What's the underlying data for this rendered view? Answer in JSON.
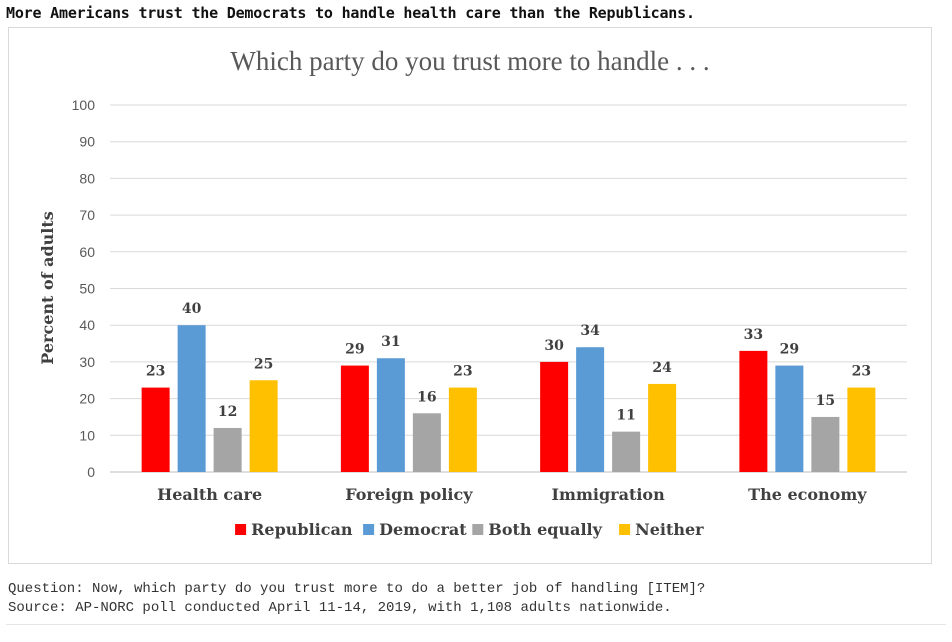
{
  "headline": "More Americans trust the Democrats to handle health care than the Republicans.",
  "footnote": {
    "question": "Question: Now, which party do you trust more to do a better job of handling [ITEM]?",
    "source": "Source: AP-NORC poll conducted April 11-14, 2019, with 1,108 adults nationwide."
  },
  "chart_data": {
    "type": "bar",
    "title": "Which party do you trust more to handle . . .",
    "xlabel": "",
    "ylabel": "Percent of adults",
    "ylim": [
      0,
      100
    ],
    "yticks": [
      0,
      10,
      20,
      30,
      40,
      50,
      60,
      70,
      80,
      90,
      100
    ],
    "grid": true,
    "legend_position": "bottom",
    "categories": [
      "Health care",
      "Foreign policy",
      "Immigration",
      "The economy"
    ],
    "series": [
      {
        "name": "Republican",
        "color": "#ff0000",
        "values": [
          23,
          29,
          30,
          33
        ]
      },
      {
        "name": "Democrat",
        "color": "#5b9bd5",
        "values": [
          40,
          31,
          34,
          29
        ]
      },
      {
        "name": "Both equally",
        "color": "#a5a5a5",
        "values": [
          12,
          16,
          11,
          15
        ]
      },
      {
        "name": "Neither",
        "color": "#ffc000",
        "values": [
          25,
          23,
          24,
          23
        ]
      }
    ]
  }
}
